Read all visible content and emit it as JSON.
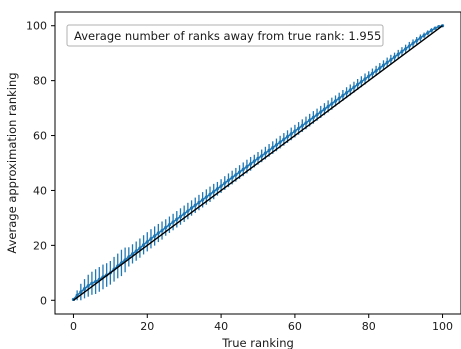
{
  "chart_data": {
    "type": "scatter",
    "xlabel": "True ranking",
    "ylabel": "Average approximation ranking",
    "annotation": "Average number of ranks away from true rank: 1.955",
    "xlim": [
      -5,
      105
    ],
    "ylim": [
      -5,
      105
    ],
    "xticks": [
      0,
      20,
      40,
      60,
      80,
      100
    ],
    "yticks": [
      0,
      20,
      40,
      60,
      80,
      100
    ],
    "grid": false,
    "colors": {
      "series": "#1f77b4",
      "reference_line": "#000000"
    },
    "reference_line": {
      "x": [
        0,
        100
      ],
      "y": [
        0,
        100
      ]
    },
    "series": [
      {
        "x": [
          0,
          1,
          2,
          3,
          4,
          5,
          6,
          7,
          8,
          9,
          10,
          11,
          12,
          13,
          14,
          15,
          16,
          17,
          18,
          19,
          20,
          21,
          22,
          23,
          24,
          25,
          26,
          27,
          28,
          29,
          30,
          31,
          32,
          33,
          34,
          35,
          36,
          37,
          38,
          39,
          40,
          41,
          42,
          43,
          44,
          45,
          46,
          47,
          48,
          49,
          50,
          51,
          52,
          53,
          54,
          55,
          56,
          57,
          58,
          59,
          60,
          61,
          62,
          63,
          64,
          65,
          66,
          67,
          68,
          69,
          70,
          71,
          72,
          73,
          74,
          75,
          76,
          77,
          78,
          79,
          80,
          81,
          82,
          83,
          84,
          85,
          86,
          87,
          88,
          89,
          90,
          91,
          92,
          93,
          94,
          95,
          96,
          97,
          98,
          99,
          100
        ],
        "y": [
          0.3,
          1.8,
          3.0,
          4.2,
          5.3,
          6.2,
          6.8,
          7.6,
          8.5,
          9.2,
          10.0,
          11.3,
          12.5,
          13.6,
          14.7,
          15.8,
          16.9,
          17.9,
          19.0,
          20.2,
          21.3,
          22.4,
          23.4,
          24.5,
          25.4,
          26.5,
          27.5,
          28.5,
          29.5,
          30.5,
          31.5,
          32.5,
          33.6,
          34.6,
          35.6,
          36.6,
          37.6,
          38.6,
          39.6,
          40.6,
          41.6,
          42.7,
          43.7,
          44.7,
          45.7,
          46.7,
          47.7,
          48.7,
          49.7,
          50.7,
          51.7,
          52.6,
          53.6,
          54.6,
          55.6,
          56.6,
          57.6,
          58.6,
          59.6,
          60.6,
          61.6,
          62.6,
          63.6,
          64.6,
          65.6,
          66.6,
          67.6,
          68.6,
          69.6,
          70.6,
          71.6,
          72.6,
          73.6,
          74.6,
          75.6,
          76.6,
          77.6,
          78.6,
          79.6,
          80.6,
          81.6,
          82.6,
          83.6,
          84.6,
          85.6,
          86.6,
          87.6,
          88.6,
          89.6,
          90.6,
          91.6,
          92.6,
          93.6,
          94.6,
          95.6,
          96.5,
          97.4,
          98.3,
          99.1,
          99.7,
          100.0
        ],
        "yerr": [
          0.3,
          1.8,
          3.0,
          3.5,
          4.0,
          4.2,
          4.5,
          4.5,
          4.5,
          4.3,
          4.3,
          4.5,
          4.5,
          4.8,
          4.5,
          3.5,
          3.5,
          3.5,
          3.5,
          3.5,
          3.5,
          3.5,
          3.5,
          3.3,
          3.3,
          3.0,
          3.0,
          3.0,
          3.0,
          3.0,
          3.0,
          3.0,
          2.8,
          2.8,
          2.8,
          2.8,
          2.8,
          2.8,
          2.8,
          2.5,
          2.5,
          2.5,
          2.5,
          2.5,
          2.5,
          2.5,
          2.5,
          2.5,
          2.5,
          2.3,
          2.3,
          2.3,
          2.3,
          2.3,
          2.3,
          2.3,
          2.3,
          2.3,
          2.3,
          2.3,
          2.3,
          2.3,
          2.3,
          2.3,
          2.3,
          2.3,
          2.2,
          2.2,
          2.2,
          2.2,
          2.2,
          2.0,
          2.0,
          2.0,
          2.0,
          2.0,
          2.0,
          2.0,
          2.0,
          2.0,
          1.8,
          1.8,
          1.8,
          1.8,
          1.8,
          1.8,
          1.8,
          1.6,
          1.6,
          1.6,
          1.5,
          1.5,
          1.4,
          1.3,
          1.2,
          1.0,
          0.9,
          0.8,
          0.6,
          0.4,
          0.0
        ]
      }
    ]
  }
}
